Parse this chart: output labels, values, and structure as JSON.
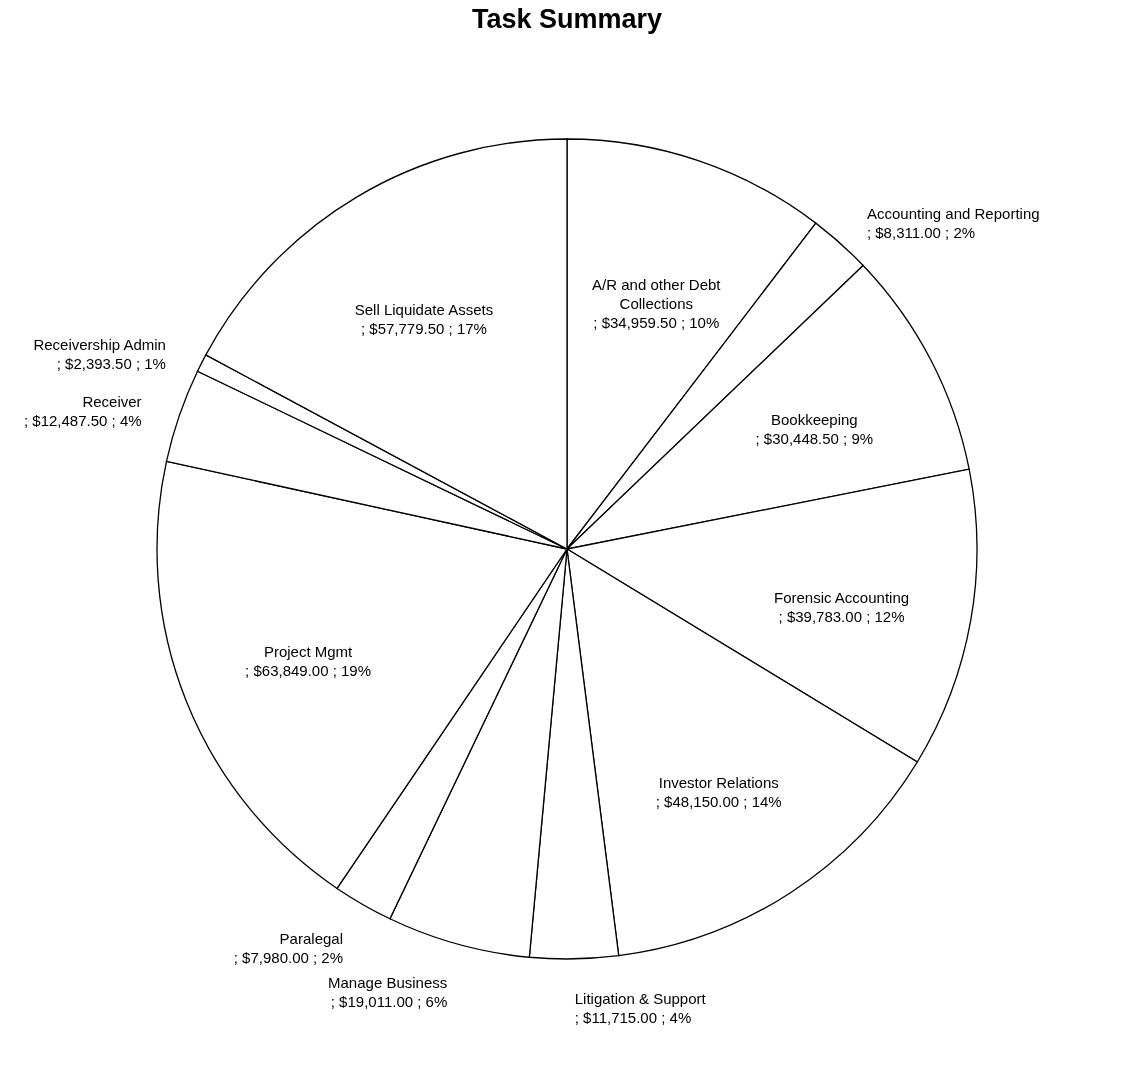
{
  "chart_data": {
    "type": "pie",
    "title": "Task Summary",
    "categories": [
      "A/R and other Debt Collections",
      "Accounting and Reporting",
      "Bookkeeping",
      "Forensic Accounting",
      "Investor Relations",
      "Litigation & Support",
      "Manage Business",
      "Paralegal",
      "Project Mgmt",
      "Receiver",
      "Receivership Admin",
      "Sell Liquidate Assets"
    ],
    "values": [
      34959.5,
      8311.0,
      30448.5,
      39783.0,
      48150.0,
      11715.0,
      19011.0,
      7980.0,
      63849.0,
      12487.5,
      2393.5,
      57779.5
    ],
    "value_labels": [
      "; $34,959.50 ; 10%",
      "; $8,311.00 ; 2%",
      "; $30,448.50 ; 9%",
      "; $39,783.00 ; 12%",
      "; $48,150.00 ; 14%",
      "; $11,715.00 ; 4%",
      "; $19,011.00 ; 6%",
      "; $7,980.00 ; 2%",
      "; $63,849.00 ; 19%",
      "; $12,487.50 ; 4%",
      "; $2,393.50 ; 1%",
      "; $57,779.50 ; 17%"
    ],
    "colors": [
      "#ffffff",
      "#ffffff",
      "#ffffff",
      "#ffffff",
      "#ffffff",
      "#ffffff",
      "#ffffff",
      "#ffffff",
      "#ffffff",
      "#ffffff",
      "#ffffff",
      "#ffffff"
    ]
  }
}
